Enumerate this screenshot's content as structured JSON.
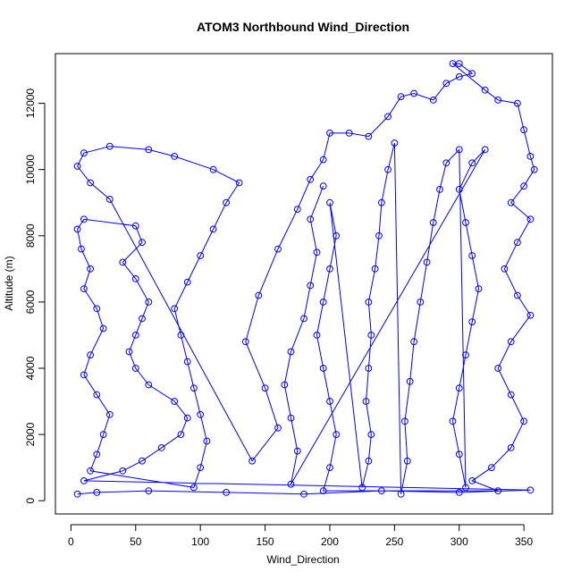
{
  "chart_data": {
    "type": "scatter",
    "title": "ATOM3 Northbound Wind_Direction",
    "xlabel": "Wind_Direction",
    "ylabel": "Altitude (m)",
    "xlim": [
      -12,
      372
    ],
    "ylim": [
      -400,
      13500
    ],
    "x_ticks": [
      0,
      50,
      100,
      150,
      200,
      250,
      300,
      350
    ],
    "y_ticks": [
      0,
      2000,
      4000,
      6000,
      8000,
      10000,
      12000
    ],
    "grid": false,
    "series_color": "#0000ff",
    "marker": "open-circle",
    "connected_lines": true,
    "series": [
      {
        "points": [
          [
            5,
            200
          ],
          [
            20,
            250
          ],
          [
            60,
            300
          ],
          [
            120,
            250
          ],
          [
            180,
            200
          ],
          [
            240,
            300
          ],
          [
            300,
            250
          ],
          [
            355,
            320
          ],
          [
            10,
            600
          ],
          [
            40,
            900
          ],
          [
            55,
            1200
          ],
          [
            70,
            1600
          ],
          [
            85,
            2000
          ],
          [
            90,
            2500
          ],
          [
            80,
            3000
          ],
          [
            60,
            3500
          ],
          [
            50,
            4000
          ],
          [
            45,
            4500
          ],
          [
            50,
            5000
          ],
          [
            55,
            5500
          ],
          [
            60,
            6000
          ],
          [
            50,
            6700
          ],
          [
            40,
            7200
          ],
          [
            55,
            7800
          ],
          [
            50,
            8300
          ],
          [
            10,
            8500
          ],
          [
            5,
            8200
          ],
          [
            8,
            7600
          ],
          [
            15,
            7000
          ],
          [
            10,
            6400
          ],
          [
            20,
            5800
          ],
          [
            25,
            5200
          ],
          [
            15,
            4400
          ],
          [
            10,
            3800
          ],
          [
            20,
            3200
          ],
          [
            30,
            2600
          ],
          [
            25,
            2000
          ],
          [
            20,
            1400
          ],
          [
            15,
            900
          ],
          [
            95,
            400
          ],
          [
            100,
            1000
          ],
          [
            105,
            1800
          ],
          [
            100,
            2600
          ],
          [
            95,
            3400
          ],
          [
            90,
            4200
          ],
          [
            85,
            5000
          ],
          [
            80,
            5800
          ],
          [
            90,
            6600
          ],
          [
            100,
            7400
          ],
          [
            110,
            8200
          ],
          [
            120,
            9000
          ],
          [
            130,
            9600
          ],
          [
            110,
            10000
          ],
          [
            80,
            10400
          ],
          [
            60,
            10600
          ],
          [
            30,
            10700
          ],
          [
            10,
            10500
          ],
          [
            5,
            10100
          ],
          [
            15,
            9600
          ],
          [
            30,
            9100
          ],
          [
            140,
            1200
          ],
          [
            160,
            2200
          ],
          [
            150,
            3400
          ],
          [
            135,
            4800
          ],
          [
            145,
            6200
          ],
          [
            160,
            7600
          ],
          [
            175,
            8800
          ],
          [
            185,
            9700
          ],
          [
            195,
            10300
          ],
          [
            200,
            11100
          ],
          [
            215,
            11100
          ],
          [
            230,
            11000
          ],
          [
            245,
            11600
          ],
          [
            255,
            12200
          ],
          [
            265,
            12300
          ],
          [
            280,
            12100
          ],
          [
            290,
            12600
          ],
          [
            300,
            12800
          ],
          [
            310,
            12900
          ],
          [
            300,
            13200
          ],
          [
            295,
            13200
          ],
          [
            320,
            12400
          ],
          [
            330,
            12100
          ],
          [
            345,
            12000
          ],
          [
            350,
            11200
          ],
          [
            355,
            10400
          ],
          [
            358,
            10000
          ],
          [
            350,
            9500
          ],
          [
            340,
            9000
          ],
          [
            355,
            8500
          ],
          [
            345,
            7800
          ],
          [
            335,
            7000
          ],
          [
            345,
            6200
          ],
          [
            355,
            5600
          ],
          [
            340,
            4800
          ],
          [
            330,
            4000
          ],
          [
            340,
            3200
          ],
          [
            350,
            2400
          ],
          [
            340,
            1600
          ],
          [
            325,
            1000
          ],
          [
            310,
            600
          ],
          [
            330,
            300
          ],
          [
            195,
            300
          ],
          [
            200,
            1000
          ],
          [
            205,
            2000
          ],
          [
            200,
            3000
          ],
          [
            195,
            4000
          ],
          [
            190,
            5000
          ],
          [
            195,
            6000
          ],
          [
            200,
            7000
          ],
          [
            205,
            8000
          ],
          [
            200,
            9000
          ],
          [
            225,
            400
          ],
          [
            230,
            1200
          ],
          [
            232,
            2000
          ],
          [
            228,
            3000
          ],
          [
            230,
            4000
          ],
          [
            232,
            5000
          ],
          [
            230,
            6000
          ],
          [
            235,
            7000
          ],
          [
            238,
            8000
          ],
          [
            240,
            9000
          ],
          [
            245,
            10000
          ],
          [
            250,
            10800
          ],
          [
            255,
            200
          ],
          [
            260,
            1200
          ],
          [
            258,
            2400
          ],
          [
            262,
            3600
          ],
          [
            265,
            4800
          ],
          [
            270,
            6000
          ],
          [
            275,
            7200
          ],
          [
            280,
            8400
          ],
          [
            285,
            9400
          ],
          [
            290,
            10200
          ],
          [
            300,
            10600
          ],
          [
            305,
            400
          ],
          [
            300,
            1400
          ],
          [
            295,
            2400
          ],
          [
            300,
            3400
          ],
          [
            305,
            4400
          ],
          [
            310,
            5400
          ],
          [
            315,
            6400
          ],
          [
            310,
            7400
          ],
          [
            305,
            8400
          ],
          [
            300,
            9400
          ],
          [
            310,
            10200
          ],
          [
            320,
            10600
          ],
          [
            170,
            500
          ],
          [
            175,
            1500
          ],
          [
            170,
            2500
          ],
          [
            165,
            3500
          ],
          [
            170,
            4500
          ],
          [
            180,
            5500
          ],
          [
            185,
            6500
          ],
          [
            190,
            7500
          ],
          [
            185,
            8500
          ],
          [
            195,
            9500
          ]
        ]
      }
    ]
  }
}
